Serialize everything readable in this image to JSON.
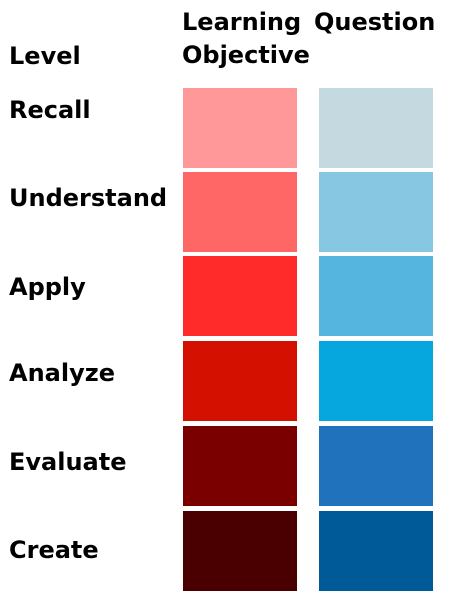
{
  "headers": {
    "level": "Level",
    "learning": "Learning",
    "question": "Question",
    "objective": "Objective"
  },
  "levels": [
    {
      "label": "Recall",
      "learning_objective_color": "#FF9999",
      "question_color": "#C5D9E1"
    },
    {
      "label": "Understand",
      "learning_objective_color": "#FF6666",
      "question_color": "#87C7E2"
    },
    {
      "label": "Apply",
      "learning_objective_color": "#FF2B2B",
      "question_color": "#56B5DF"
    },
    {
      "label": "Analyze",
      "learning_objective_color": "#D41000",
      "question_color": "#06A6DE"
    },
    {
      "label": "Evaluate",
      "learning_objective_color": "#7A0000",
      "question_color": "#2172BC"
    },
    {
      "label": "Create",
      "learning_objective_color": "#4A0000",
      "question_color": "#015A98"
    }
  ]
}
